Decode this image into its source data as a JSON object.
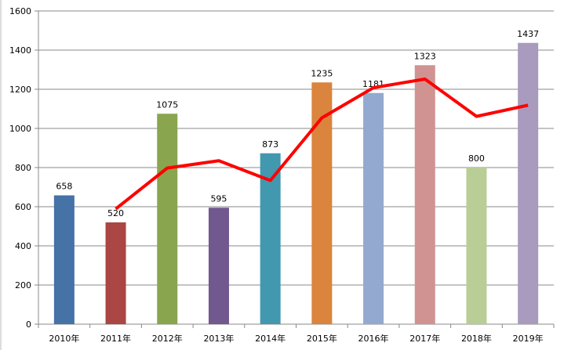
{
  "chart_data": {
    "type": "bar",
    "categories": [
      "2010年",
      "2011年",
      "2012年",
      "2013年",
      "2014年",
      "2015年",
      "2016年",
      "2017年",
      "2018年",
      "2019年"
    ],
    "values": [
      658,
      520,
      1075,
      595,
      873,
      1235,
      1181,
      1323,
      800,
      1437
    ],
    "bar_colors": [
      "#4572A7",
      "#AA4643",
      "#89A54E",
      "#71588F",
      "#4198AF",
      "#DB843D",
      "#93A9CF",
      "#D19392",
      "#B9CD96",
      "#A99BBD"
    ],
    "overlay_line": {
      "type": "line",
      "color": "#FF0000",
      "x": [
        "2011年",
        "2012年",
        "2013年",
        "2014年",
        "2015年",
        "2016年",
        "2017年",
        "2018年",
        "2019年"
      ],
      "values": [
        589,
        797.5,
        835,
        734,
        1054,
        1208,
        1252,
        1061.5,
        1118.5
      ]
    },
    "ylim": [
      0,
      1600
    ],
    "yticks": [
      0,
      200,
      400,
      600,
      800,
      1000,
      1200,
      1400,
      1600
    ],
    "grid": true,
    "data_labels": true,
    "title": "",
    "xlabel": "",
    "ylabel": ""
  }
}
